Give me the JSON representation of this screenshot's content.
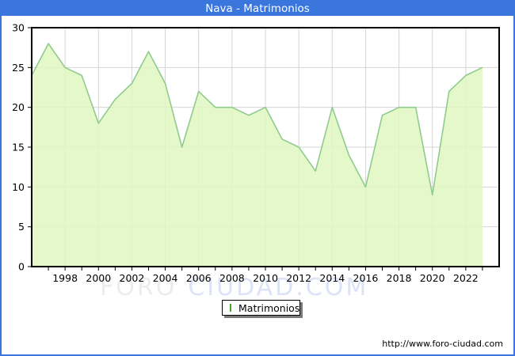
{
  "window": {
    "title": "Nava - Matrimonios"
  },
  "chart_data": {
    "type": "area",
    "title": "Nava - Matrimonios",
    "x": [
      1996,
      1997,
      1998,
      1999,
      2000,
      2001,
      2002,
      2003,
      2004,
      2005,
      2006,
      2007,
      2008,
      2009,
      2010,
      2011,
      2012,
      2013,
      2014,
      2015,
      2016,
      2017,
      2018,
      2019,
      2020,
      2021,
      2022,
      2023
    ],
    "series": [
      {
        "name": "Matrimonios",
        "values": [
          24,
          28,
          25,
          24,
          18,
          21,
          23,
          27,
          23,
          15,
          22,
          20,
          20,
          19,
          20,
          16,
          15,
          12,
          20,
          14,
          10,
          19,
          20,
          20,
          9,
          22,
          24,
          25
        ]
      }
    ],
    "xlabel": "",
    "ylabel": "",
    "xlim": [
      1996,
      2024
    ],
    "ylim": [
      0,
      30
    ],
    "xticks": [
      1998,
      2000,
      2002,
      2004,
      2006,
      2008,
      2010,
      2012,
      2014,
      2016,
      2018,
      2020,
      2022
    ],
    "yticks": [
      0,
      5,
      10,
      15,
      20,
      25,
      30
    ],
    "grid": true,
    "legend_position": "bottom-center",
    "colors": {
      "titlebar": "#3b76dd",
      "area_fill": "#e0f7bf",
      "line": "#8fcb8f",
      "grid": "#d4d4d4",
      "frame": "#000000",
      "legend_swatch_fill": "#c9ef92",
      "legend_swatch_border": "#4aa32e"
    }
  },
  "legend": {
    "label": "Matrimonios"
  },
  "watermark": {
    "part1": "FORO",
    "part2": "CIUDAD.COM"
  },
  "footer": {
    "url": "http://www.foro-ciudad.com"
  }
}
